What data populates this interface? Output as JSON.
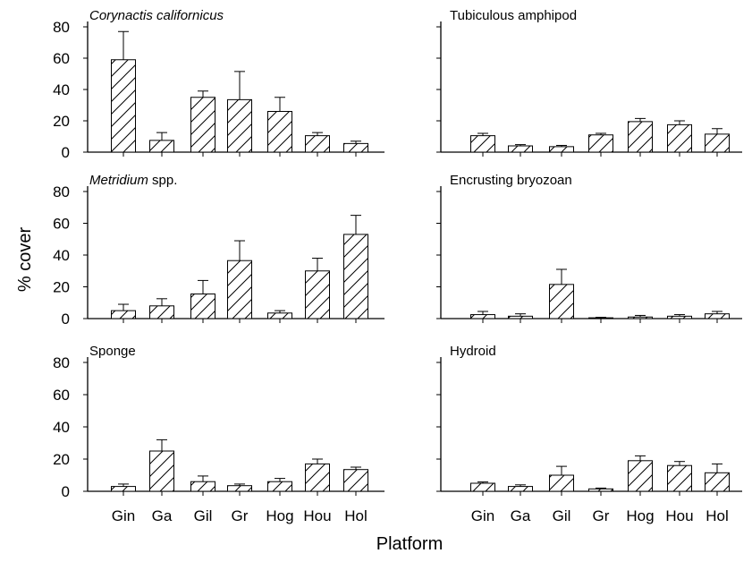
{
  "figure": {
    "ylabel": "% cover",
    "xlabel": "Platform"
  },
  "chart_data": [
    {
      "type": "bar",
      "title": "Corynactis californicus",
      "title_italic": true,
      "categories": [
        "Gin",
        "Ga",
        "Gil",
        "Gr",
        "Hog",
        "Hou",
        "Hol"
      ],
      "values": [
        59,
        7.5,
        35,
        33.5,
        26,
        10.5,
        5.5
      ],
      "error": [
        18,
        5,
        4,
        18,
        9,
        2,
        1.5
      ],
      "yticks": [
        0,
        20,
        40,
        60,
        80
      ],
      "ylim": [
        0,
        80
      ],
      "bar_fill": "diagonal-hatch"
    },
    {
      "type": "bar",
      "title": "Tubiculous amphipod",
      "title_italic": false,
      "categories": [
        "Gin",
        "Ga",
        "Gil",
        "Gr",
        "Hog",
        "Hou",
        "Hol"
      ],
      "values": [
        10.5,
        4,
        3.5,
        11,
        19.5,
        17.5,
        11.5
      ],
      "error": [
        1.5,
        0.8,
        0.8,
        1,
        2,
        2.5,
        3.5
      ],
      "ylim": [
        0,
        80
      ],
      "bar_fill": "diagonal-hatch"
    },
    {
      "type": "bar",
      "title": "Metridium",
      "title_suffix": " spp.",
      "title_italic": true,
      "categories": [
        "Gin",
        "Ga",
        "Gil",
        "Gr",
        "Hog",
        "Hou",
        "Hol"
      ],
      "values": [
        5,
        8,
        15.5,
        36.5,
        3.5,
        30,
        53
      ],
      "error": [
        4,
        4.5,
        8.5,
        12.5,
        1.5,
        8,
        12
      ],
      "yticks": [
        0,
        20,
        40,
        60,
        80
      ],
      "ylim": [
        0,
        80
      ],
      "bar_fill": "diagonal-hatch"
    },
    {
      "type": "bar",
      "title": "Encrusting bryozoan",
      "title_italic": false,
      "categories": [
        "Gin",
        "Ga",
        "Gil",
        "Gr",
        "Hog",
        "Hou",
        "Hol"
      ],
      "values": [
        2.5,
        1.5,
        21.5,
        0.5,
        1,
        1.5,
        3
      ],
      "error": [
        2,
        1.5,
        9.5,
        0.3,
        1,
        1,
        1.5
      ],
      "ylim": [
        0,
        80
      ],
      "bar_fill": "diagonal-hatch"
    },
    {
      "type": "bar",
      "title": "Sponge",
      "title_italic": false,
      "categories": [
        "Gin",
        "Ga",
        "Gil",
        "Gr",
        "Hog",
        "Hou",
        "Hol"
      ],
      "values": [
        3,
        25,
        6,
        3.5,
        6,
        17,
        13.5
      ],
      "error": [
        1.5,
        7,
        3.5,
        1,
        2,
        3,
        1.5
      ],
      "yticks": [
        0,
        20,
        40,
        60,
        80
      ],
      "ylim": [
        0,
        80
      ],
      "bar_fill": "diagonal-hatch"
    },
    {
      "type": "bar",
      "title": "Hydroid",
      "title_italic": false,
      "categories": [
        "Gin",
        "Ga",
        "Gil",
        "Gr",
        "Hog",
        "Hou",
        "Hol"
      ],
      "values": [
        5,
        3,
        10,
        1.5,
        19,
        16,
        11.5
      ],
      "error": [
        0.8,
        1,
        5.5,
        0.5,
        3,
        2.5,
        5.5
      ],
      "ylim": [
        0,
        80
      ],
      "bar_fill": "diagonal-hatch"
    }
  ]
}
